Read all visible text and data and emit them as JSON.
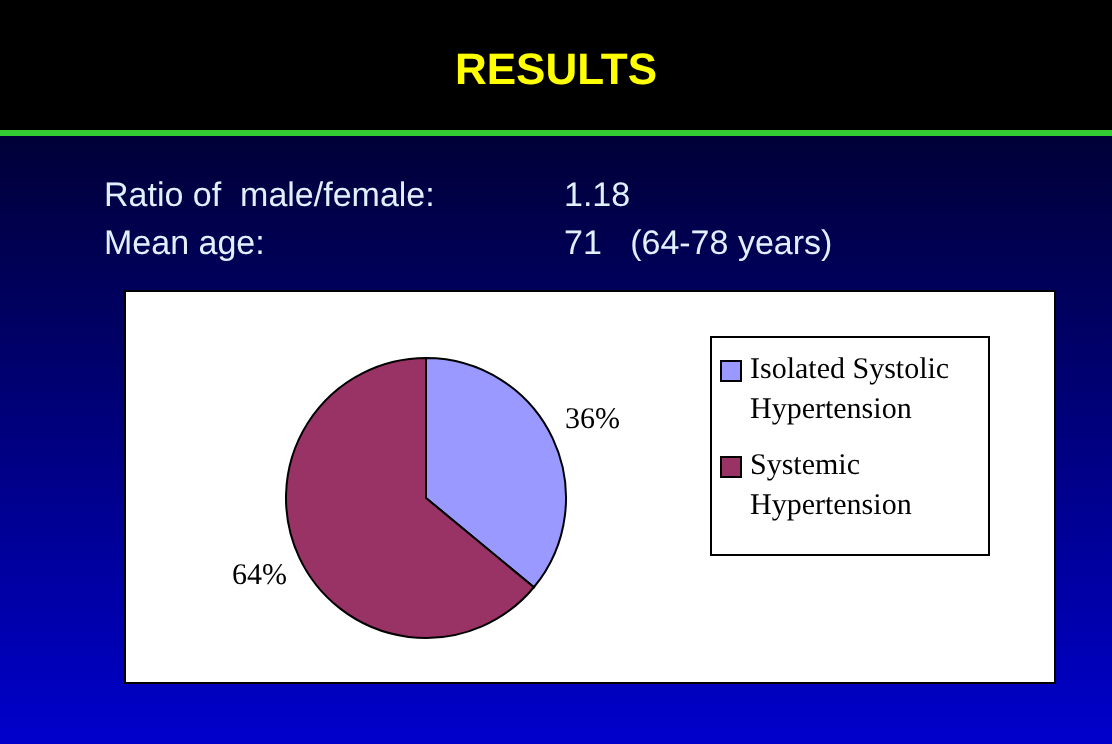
{
  "chart_data": {
    "type": "pie",
    "title": "RESULTS",
    "annotations": [
      "Ratio of  male/female:",
      "1.18",
      "Mean age:",
      "71   (64-78 years)"
    ],
    "categories": [
      "Isolated Systolic Hypertension",
      "Systemic Hypertension"
    ],
    "values": [
      36,
      64
    ],
    "colors": [
      "#9999ff",
      "#993366"
    ],
    "value_labels": [
      "36%",
      "64%"
    ],
    "legend": "right"
  }
}
